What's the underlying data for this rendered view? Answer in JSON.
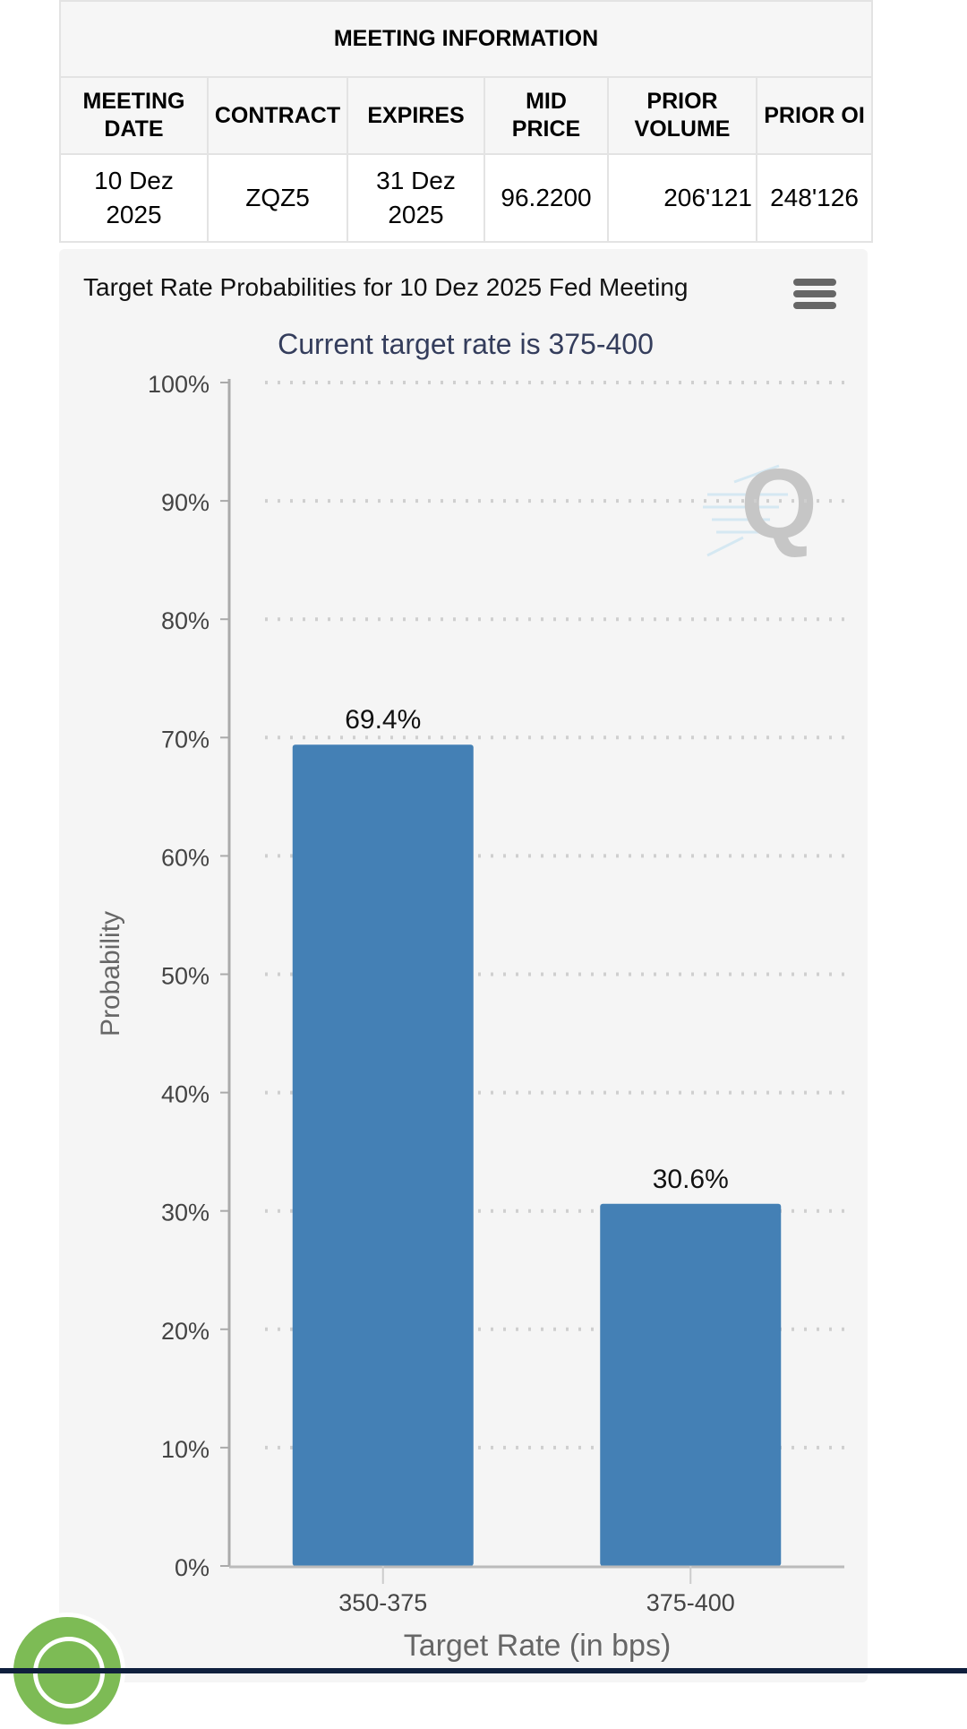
{
  "meeting_info": {
    "title": "MEETING INFORMATION",
    "headers": [
      "MEETING DATE",
      "CONTRACT",
      "EXPIRES",
      "MID PRICE",
      "PRIOR VOLUME",
      "PRIOR OI"
    ],
    "row": [
      "10 Dez 2025",
      "ZQZ5",
      "31 Dez 2025",
      "96.2200",
      "206'121",
      "248'126"
    ]
  },
  "chart_menu_icon": "hamburger-menu-icon",
  "cookie_icon": "cookie-icon",
  "chart_data": {
    "type": "bar",
    "title": "Target Rate Probabilities for 10 Dez 2025 Fed Meeting",
    "subtitle": "Current target rate is 375-400",
    "xlabel": "Target Rate (in bps)",
    "ylabel": "Probability",
    "categories": [
      "350-375",
      "375-400"
    ],
    "values": [
      69.4,
      30.6
    ],
    "data_labels": [
      "69.4%",
      "30.6%"
    ],
    "ylim": [
      0,
      100
    ],
    "yticks": [
      "0%",
      "10%",
      "20%",
      "30%",
      "40%",
      "50%",
      "60%",
      "70%",
      "80%",
      "90%",
      "100%"
    ],
    "grid": true,
    "bar_color": "#4480b5",
    "subtitle_color": "#343d5c"
  }
}
